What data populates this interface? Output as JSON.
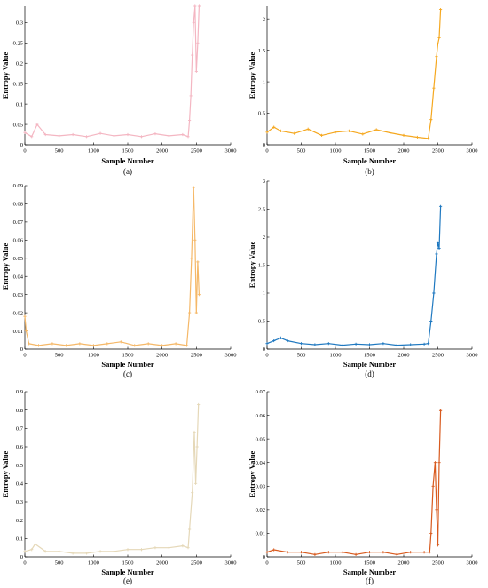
{
  "chart_data": [
    {
      "type": "line",
      "panel_label": "(a)",
      "color": "#F4B6C2",
      "xlabel": "Sample Number",
      "ylabel": "Entropy Value",
      "xlim": [
        0,
        3000
      ],
      "ylim": [
        0,
        0.34
      ],
      "x_ticks": [
        "0",
        "500",
        "1000",
        "1500",
        "2000",
        "2500",
        "3000"
      ],
      "y_ticks": [
        {
          "value": 0,
          "label": "0"
        },
        {
          "value": 0.05,
          "label": "0.05"
        },
        {
          "value": 0.1,
          "label": "0.1"
        },
        {
          "value": 0.15,
          "label": "0.15"
        },
        {
          "value": 0.2,
          "label": "0.2"
        },
        {
          "value": 0.25,
          "label": "0.25"
        },
        {
          "value": 0.3,
          "label": "0.3"
        }
      ],
      "x": [
        0,
        100,
        180,
        300,
        500,
        700,
        900,
        1100,
        1300,
        1500,
        1700,
        1900,
        2100,
        2300,
        2380,
        2400,
        2420,
        2440,
        2460,
        2480,
        2500,
        2520,
        2540
      ],
      "values": [
        0.03,
        0.02,
        0.05,
        0.025,
        0.022,
        0.025,
        0.02,
        0.028,
        0.022,
        0.025,
        0.02,
        0.027,
        0.022,
        0.025,
        0.02,
        0.06,
        0.12,
        0.22,
        0.3,
        0.34,
        0.18,
        0.25,
        0.34
      ]
    },
    {
      "type": "line",
      "panel_label": "(b)",
      "color": "#F5A820",
      "xlabel": "Sample Number",
      "ylabel": "Entropy Value",
      "xlim": [
        0,
        3000
      ],
      "ylim": [
        0,
        2.2
      ],
      "x_ticks": [
        "0",
        "500",
        "1000",
        "1500",
        "2000",
        "2500",
        "3000"
      ],
      "y_ticks": [
        {
          "value": 0,
          "label": "0"
        },
        {
          "value": 0.5,
          "label": "0.5"
        },
        {
          "value": 1,
          "label": "1"
        },
        {
          "value": 1.5,
          "label": "1.5"
        },
        {
          "value": 2,
          "label": "2"
        }
      ],
      "x": [
        0,
        100,
        200,
        400,
        600,
        800,
        1000,
        1200,
        1400,
        1600,
        1800,
        2000,
        2200,
        2360,
        2400,
        2440,
        2480,
        2500,
        2520,
        2540
      ],
      "values": [
        0.2,
        0.28,
        0.22,
        0.18,
        0.25,
        0.15,
        0.2,
        0.22,
        0.17,
        0.24,
        0.19,
        0.15,
        0.12,
        0.1,
        0.4,
        0.9,
        1.4,
        1.6,
        1.7,
        2.15
      ]
    },
    {
      "type": "line",
      "panel_label": "(c)",
      "color": "#F5B868",
      "xlabel": "Sample Number",
      "ylabel": "Entropy Value",
      "xlim": [
        0,
        3000
      ],
      "ylim": [
        0,
        0.09
      ],
      "x_ticks": [
        "0",
        "500",
        "1000",
        "1500",
        "2000",
        "2500",
        "3000"
      ],
      "y_ticks": [
        {
          "value": 0,
          "label": "0"
        },
        {
          "value": 0.01,
          "label": "0.01"
        },
        {
          "value": 0.02,
          "label": "0.02"
        },
        {
          "value": 0.03,
          "label": "0.03"
        },
        {
          "value": 0.04,
          "label": "0.04"
        },
        {
          "value": 0.05,
          "label": "0.05"
        },
        {
          "value": 0.06,
          "label": "0.06"
        },
        {
          "value": 0.07,
          "label": "0.07"
        },
        {
          "value": 0.08,
          "label": "0.08"
        },
        {
          "value": 0.09,
          "label": "0.09"
        }
      ],
      "x": [
        0,
        20,
        60,
        200,
        400,
        600,
        800,
        1000,
        1200,
        1400,
        1600,
        1800,
        2000,
        2200,
        2360,
        2400,
        2430,
        2460,
        2480,
        2500,
        2520,
        2540
      ],
      "values": [
        0.018,
        0.01,
        0.003,
        0.002,
        0.003,
        0.002,
        0.003,
        0.002,
        0.003,
        0.004,
        0.002,
        0.003,
        0.002,
        0.003,
        0.002,
        0.02,
        0.05,
        0.089,
        0.06,
        0.02,
        0.048,
        0.03
      ]
    },
    {
      "type": "line",
      "panel_label": "(d)",
      "color": "#1E78C0",
      "xlabel": "Sample Number",
      "ylabel": "Entropy Value",
      "xlim": [
        0,
        3000
      ],
      "ylim": [
        0,
        3
      ],
      "x_ticks": [
        "0",
        "500",
        "1000",
        "1500",
        "2000",
        "2500",
        "3000"
      ],
      "y_ticks": [
        {
          "value": 0,
          "label": "0"
        },
        {
          "value": 0.5,
          "label": "0.5"
        },
        {
          "value": 1,
          "label": "1"
        },
        {
          "value": 1.5,
          "label": "1.5"
        },
        {
          "value": 2,
          "label": "2"
        },
        {
          "value": 2.5,
          "label": "2.5"
        },
        {
          "value": 3,
          "label": "3"
        }
      ],
      "x": [
        0,
        100,
        200,
        300,
        500,
        700,
        900,
        1100,
        1300,
        1500,
        1700,
        1900,
        2100,
        2300,
        2360,
        2400,
        2440,
        2480,
        2500,
        2520,
        2540
      ],
      "values": [
        0.1,
        0.15,
        0.2,
        0.15,
        0.1,
        0.08,
        0.1,
        0.07,
        0.09,
        0.08,
        0.1,
        0.07,
        0.08,
        0.09,
        0.1,
        0.5,
        1.0,
        1.7,
        1.9,
        1.8,
        2.55
      ]
    },
    {
      "type": "line",
      "panel_label": "(e)",
      "color": "#E5D8B8",
      "xlabel": "Sample Number",
      "ylabel": "Entropy Value",
      "xlim": [
        0,
        3000
      ],
      "ylim": [
        0,
        0.9
      ],
      "x_ticks": [
        "0",
        "500",
        "1000",
        "1500",
        "2000",
        "2500",
        "3000"
      ],
      "y_ticks": [
        {
          "value": 0,
          "label": "0"
        },
        {
          "value": 0.1,
          "label": "0.1"
        },
        {
          "value": 0.2,
          "label": "0.2"
        },
        {
          "value": 0.3,
          "label": "0.3"
        },
        {
          "value": 0.4,
          "label": "0.4"
        },
        {
          "value": 0.5,
          "label": "0.5"
        },
        {
          "value": 0.6,
          "label": "0.6"
        },
        {
          "value": 0.7,
          "label": "0.7"
        },
        {
          "value": 0.8,
          "label": "0.8"
        },
        {
          "value": 0.9,
          "label": "0.9"
        }
      ],
      "x": [
        0,
        100,
        150,
        300,
        500,
        700,
        900,
        1100,
        1300,
        1500,
        1700,
        1900,
        2100,
        2300,
        2380,
        2400,
        2440,
        2470,
        2490,
        2510,
        2530
      ],
      "values": [
        0.03,
        0.04,
        0.07,
        0.03,
        0.03,
        0.02,
        0.02,
        0.03,
        0.03,
        0.04,
        0.04,
        0.05,
        0.05,
        0.06,
        0.05,
        0.15,
        0.35,
        0.68,
        0.4,
        0.6,
        0.83
      ]
    },
    {
      "type": "line",
      "panel_label": "(f)",
      "color": "#D85A1E",
      "xlabel": "Sample Number",
      "ylabel": "Entropy Value",
      "xlim": [
        0,
        3000
      ],
      "ylim": [
        0,
        0.07
      ],
      "x_ticks": [
        "0",
        "500",
        "1000",
        "1500",
        "2000",
        "2500",
        "3000"
      ],
      "y_ticks": [
        {
          "value": 0,
          "label": "0"
        },
        {
          "value": 0.01,
          "label": "0.01"
        },
        {
          "value": 0.02,
          "label": "0.02"
        },
        {
          "value": 0.03,
          "label": "0.03"
        },
        {
          "value": 0.04,
          "label": "0.04"
        },
        {
          "value": 0.05,
          "label": "0.05"
        },
        {
          "value": 0.06,
          "label": "0.06"
        },
        {
          "value": 0.07,
          "label": "0.07"
        }
      ],
      "x": [
        0,
        100,
        300,
        500,
        700,
        900,
        1100,
        1300,
        1500,
        1700,
        1900,
        2100,
        2300,
        2380,
        2400,
        2430,
        2460,
        2480,
        2500,
        2520,
        2540
      ],
      "values": [
        0.002,
        0.003,
        0.002,
        0.002,
        0.001,
        0.002,
        0.002,
        0.001,
        0.002,
        0.002,
        0.001,
        0.002,
        0.002,
        0.002,
        0.01,
        0.03,
        0.04,
        0.02,
        0.005,
        0.04,
        0.062
      ]
    }
  ]
}
